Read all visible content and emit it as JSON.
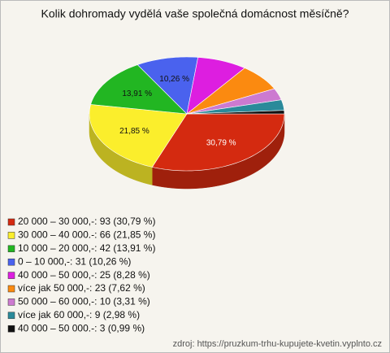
{
  "chart_data": {
    "type": "pie3d",
    "title": "Kolik dohromady vydělá vaše společná domácnost měsíčně?",
    "categories": [
      "20 000 – 30 000,-: 93 (30,79 %)",
      "30 000 – 40 000.-: 66 (21,85 %)",
      "10 000 – 20 000,-: 42 (13,91 %)",
      "0 – 10 000,-: 31 (10,26 %)",
      "40 000 – 50 000,-: 25 (8,28 %)",
      "více jak 50 000,-: 23 (7,62 %)",
      "50 000 – 60 000,-: 10 (3,31 %)",
      "více jak 60 000,-: 9 (2,98 %)",
      "40 000 – 50 000.-: 3 (0,99 %)"
    ],
    "values": [
      30.79,
      21.85,
      13.91,
      10.26,
      8.28,
      7.62,
      3.31,
      2.98,
      0.99
    ],
    "value_labels": [
      "30,79 %",
      "21,85 %",
      "13,91 %",
      "10,26 %",
      null,
      null,
      null,
      null,
      null
    ],
    "colors": [
      "#d42a10",
      "#fbee2c",
      "#22b622",
      "#4a62ee",
      "#dd1ee0",
      "#fb8a10",
      "#cc7ad0",
      "#2a8a9a",
      "#111111"
    ],
    "source": "zdroj: https://pruzkum-trhu-kupujete-kvetin.vyplnto.cz"
  }
}
